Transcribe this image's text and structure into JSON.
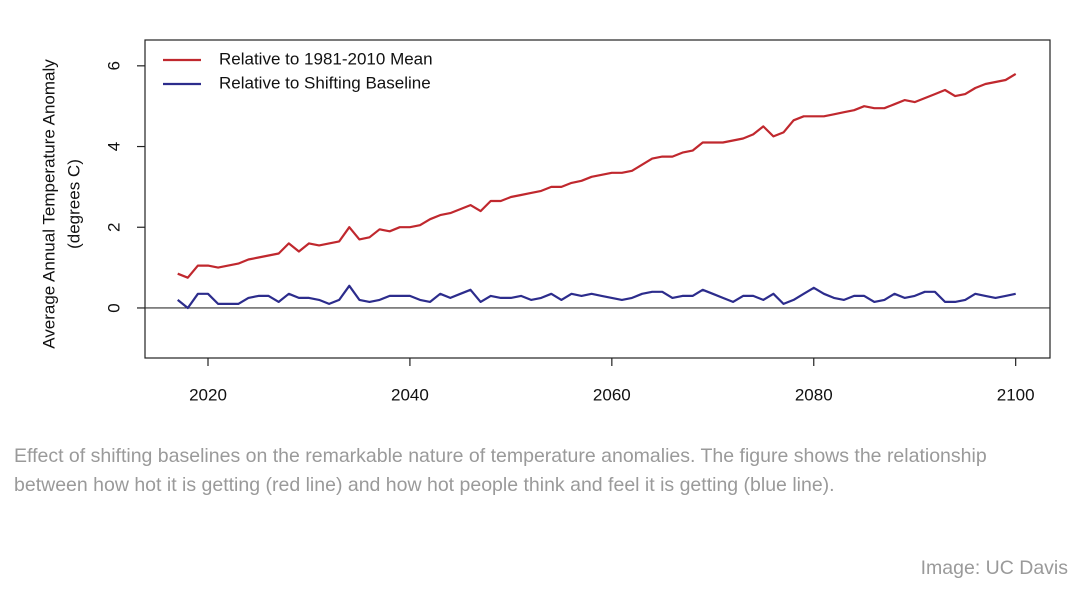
{
  "chart_data": {
    "type": "line",
    "ylabel": [
      "Average Annual Temperature Anomaly",
      "(degrees C)"
    ],
    "x": [
      2017,
      2018,
      2019,
      2020,
      2021,
      2022,
      2023,
      2024,
      2025,
      2026,
      2027,
      2028,
      2029,
      2030,
      2031,
      2032,
      2033,
      2034,
      2035,
      2036,
      2037,
      2038,
      2039,
      2040,
      2041,
      2042,
      2043,
      2044,
      2045,
      2046,
      2047,
      2048,
      2049,
      2050,
      2051,
      2052,
      2053,
      2054,
      2055,
      2056,
      2057,
      2058,
      2059,
      2060,
      2061,
      2062,
      2063,
      2064,
      2065,
      2066,
      2067,
      2068,
      2069,
      2070,
      2071,
      2072,
      2073,
      2074,
      2075,
      2076,
      2077,
      2078,
      2079,
      2080,
      2081,
      2082,
      2083,
      2084,
      2085,
      2086,
      2087,
      2088,
      2089,
      2090,
      2091,
      2092,
      2093,
      2094,
      2095,
      2096,
      2097,
      2098,
      2099,
      2100
    ],
    "series": [
      {
        "name": "Relative to 1981-2010 Mean",
        "color": "#c0282e",
        "values": [
          0.85,
          0.75,
          1.05,
          1.05,
          1.0,
          1.05,
          1.1,
          1.2,
          1.25,
          1.3,
          1.35,
          1.6,
          1.4,
          1.6,
          1.55,
          1.6,
          1.65,
          2.0,
          1.7,
          1.75,
          1.95,
          1.9,
          2.0,
          2.0,
          2.05,
          2.2,
          2.3,
          2.35,
          2.45,
          2.55,
          2.4,
          2.65,
          2.65,
          2.75,
          2.8,
          2.85,
          2.9,
          3.0,
          3.0,
          3.1,
          3.15,
          3.25,
          3.3,
          3.35,
          3.35,
          3.4,
          3.55,
          3.7,
          3.75,
          3.75,
          3.85,
          3.9,
          4.1,
          4.1,
          4.1,
          4.15,
          4.2,
          4.3,
          4.5,
          4.25,
          4.35,
          4.65,
          4.75,
          4.75,
          4.75,
          4.8,
          4.85,
          4.9,
          5.0,
          4.95,
          4.95,
          5.05,
          5.15,
          5.1,
          5.2,
          5.3,
          5.4,
          5.25,
          5.3,
          5.45,
          5.55,
          5.6,
          5.65,
          5.8
        ]
      },
      {
        "name": "Relative to Shifting Baseline",
        "color": "#2c2c8c",
        "values": [
          0.2,
          0.0,
          0.35,
          0.35,
          0.1,
          0.1,
          0.1,
          0.25,
          0.3,
          0.3,
          0.15,
          0.35,
          0.25,
          0.25,
          0.2,
          0.1,
          0.2,
          0.55,
          0.2,
          0.15,
          0.2,
          0.3,
          0.3,
          0.3,
          0.2,
          0.15,
          0.35,
          0.25,
          0.35,
          0.45,
          0.15,
          0.3,
          0.25,
          0.25,
          0.3,
          0.2,
          0.25,
          0.35,
          0.2,
          0.35,
          0.3,
          0.35,
          0.3,
          0.25,
          0.2,
          0.25,
          0.35,
          0.4,
          0.4,
          0.25,
          0.3,
          0.3,
          0.45,
          0.35,
          0.25,
          0.15,
          0.3,
          0.3,
          0.2,
          0.35,
          0.1,
          0.2,
          0.35,
          0.5,
          0.35,
          0.25,
          0.2,
          0.3,
          0.3,
          0.15,
          0.2,
          0.35,
          0.25,
          0.3,
          0.4,
          0.4,
          0.15,
          0.15,
          0.2,
          0.35,
          0.3,
          0.25,
          0.3,
          0.35
        ]
      }
    ],
    "xlim": [
      2013.76,
      2103.4
    ],
    "xticks": [
      2020,
      2040,
      2060,
      2080,
      2100
    ],
    "ylim": [
      -1.24,
      6.64
    ],
    "yticks": [
      0,
      2,
      4,
      6
    ],
    "hline": 0,
    "legend": "top-left"
  },
  "caption": "Effect of shifting baselines on the remarkable nature of temperature anomalies. The figure shows the relationship between how hot it is getting (red line) and how hot people think and feel it is getting (blue line).",
  "credit": "Image: UC Davis"
}
